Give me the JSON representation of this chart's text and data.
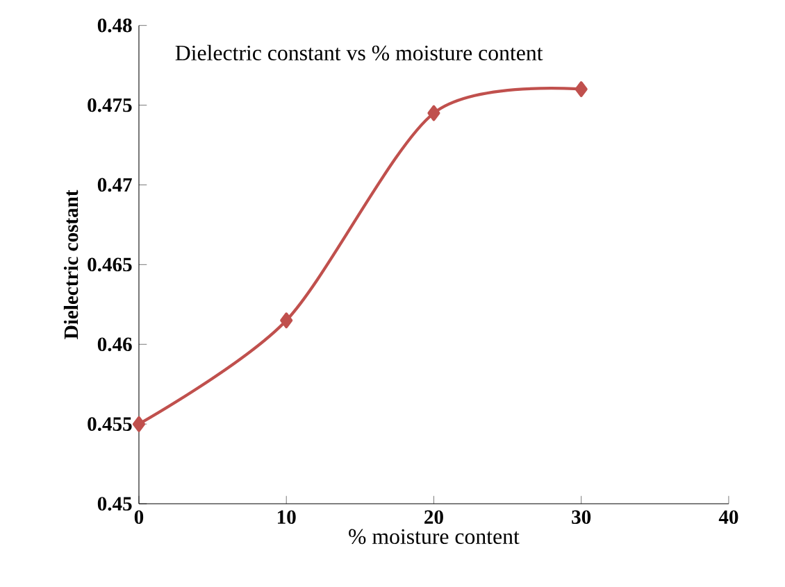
{
  "chart_data": {
    "type": "line",
    "title": "Dielectric constant vs % moisture content",
    "xlabel": "% moisture content",
    "ylabel": "Dielectric costant",
    "x": [
      0,
      10,
      20,
      30
    ],
    "series": [
      {
        "color": "#c0504d",
        "values": [
          0.455,
          0.4615,
          0.4745,
          0.476
        ]
      }
    ],
    "xlim": [
      0,
      40
    ],
    "xticks": [
      0,
      10,
      20,
      30,
      40
    ],
    "ylim": [
      0.45,
      0.48
    ],
    "yticks": [
      0.45,
      0.455,
      0.46,
      0.465,
      0.47,
      0.475,
      0.48
    ],
    "marker": "diamond",
    "grid": false
  }
}
